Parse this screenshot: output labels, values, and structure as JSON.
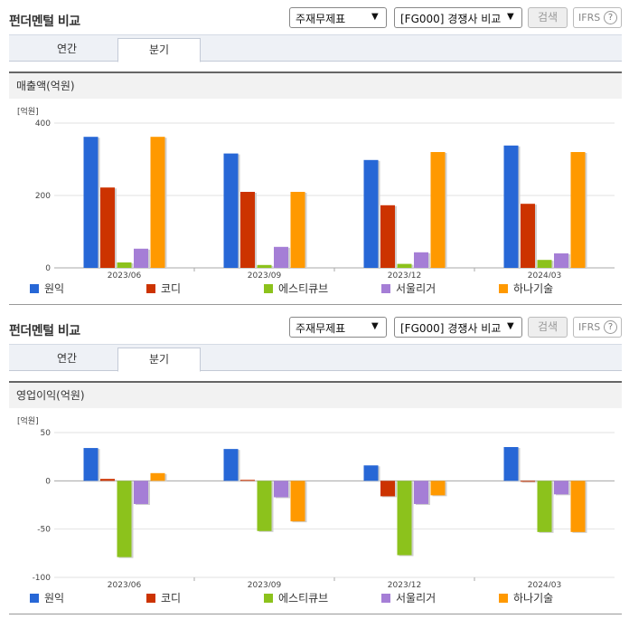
{
  "panels": [
    {
      "title": "펀더멘털 비교",
      "select_statement": "주재무제표",
      "select_compare": "[FG000] 경쟁사 비교",
      "search_label": "검색",
      "ifrs_label": "IFRS",
      "ifrs_help": "?",
      "tabs": [
        "연간",
        "분기"
      ],
      "active_tab": "분기",
      "section_title": "매출액(억원)",
      "unit_label": "[억원]"
    },
    {
      "title": "펀더멘털 비교",
      "select_statement": "주재무제표",
      "select_compare": "[FG000] 경쟁사 비교",
      "search_label": "검색",
      "ifrs_label": "IFRS",
      "ifrs_help": "?",
      "tabs": [
        "연간",
        "분기"
      ],
      "active_tab": "분기",
      "section_title": "영업이익(억원)",
      "unit_label": "[억원]"
    }
  ],
  "legend": [
    {
      "name": "원익",
      "color": "#2767d6"
    },
    {
      "name": "코디",
      "color": "#cc3300"
    },
    {
      "name": "에스티큐브",
      "color": "#8cc21c"
    },
    {
      "name": "서울리거",
      "color": "#a57ed6"
    },
    {
      "name": "하나기술",
      "color": "#ff9900"
    }
  ],
  "chart_data": [
    {
      "type": "bar",
      "categories": [
        "2023/06",
        "2023/09",
        "2023/12",
        "2024/03"
      ],
      "ylim": [
        0,
        400
      ],
      "yticks": [
        0,
        200,
        400
      ],
      "grid": true,
      "legend_position": "bottom",
      "series": [
        {
          "name": "원익",
          "values": [
            362,
            316,
            298,
            338
          ]
        },
        {
          "name": "코디",
          "values": [
            222,
            210,
            173,
            177
          ]
        },
        {
          "name": "에스티큐브",
          "values": [
            15,
            8,
            11,
            22
          ]
        },
        {
          "name": "서울리거",
          "values": [
            53,
            58,
            43,
            40
          ]
        },
        {
          "name": "하나기술",
          "values": [
            362,
            210,
            320,
            320
          ]
        }
      ]
    },
    {
      "type": "bar",
      "categories": [
        "2023/06",
        "2023/09",
        "2023/12",
        "2024/03"
      ],
      "ylim": [
        -100,
        50
      ],
      "yticks": [
        -100,
        -50,
        0,
        50
      ],
      "grid": true,
      "legend_position": "bottom",
      "series": [
        {
          "name": "원익",
          "values": [
            34,
            33,
            16,
            35
          ]
        },
        {
          "name": "코디",
          "values": [
            2,
            1,
            -16,
            0
          ]
        },
        {
          "name": "에스티큐브",
          "values": [
            -79,
            -52,
            -77,
            -53
          ]
        },
        {
          "name": "서울리거",
          "values": [
            -24,
            -17,
            -24,
            -14
          ]
        },
        {
          "name": "하나기술",
          "values": [
            8,
            -42,
            -15,
            -53
          ]
        }
      ]
    }
  ]
}
